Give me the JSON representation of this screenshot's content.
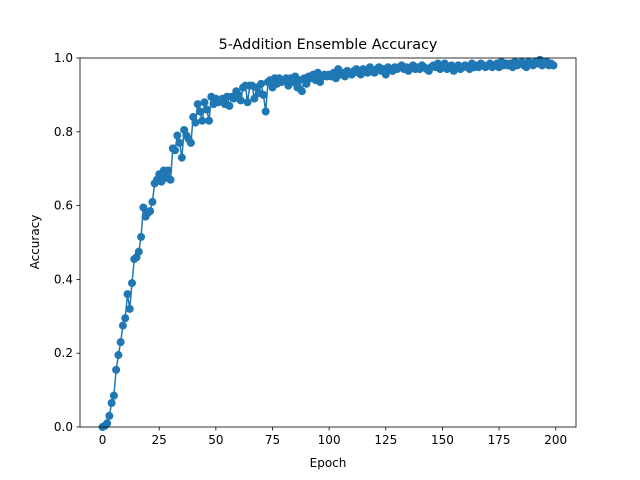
{
  "chart_data": {
    "type": "line",
    "title": "5-Addition Ensemble Accuracy",
    "xlabel": "Epoch",
    "ylabel": "Accuracy",
    "x": [
      0,
      1,
      2,
      3,
      4,
      5,
      6,
      7,
      8,
      9,
      10,
      11,
      12,
      13,
      14,
      15,
      16,
      17,
      18,
      19,
      20,
      21,
      22,
      23,
      24,
      25,
      26,
      27,
      28,
      29,
      30,
      31,
      32,
      33,
      34,
      35,
      36,
      37,
      38,
      39,
      40,
      41,
      42,
      43,
      44,
      45,
      46,
      47,
      48,
      49,
      50,
      51,
      52,
      53,
      54,
      55,
      56,
      57,
      58,
      59,
      60,
      61,
      62,
      63,
      64,
      65,
      66,
      67,
      68,
      69,
      70,
      71,
      72,
      73,
      74,
      75,
      76,
      77,
      78,
      79,
      80,
      81,
      82,
      83,
      84,
      85,
      86,
      87,
      88,
      89,
      90,
      91,
      92,
      93,
      94,
      95,
      96,
      97,
      98,
      99,
      100,
      101,
      102,
      103,
      104,
      105,
      106,
      107,
      108,
      109,
      110,
      111,
      112,
      113,
      114,
      115,
      116,
      117,
      118,
      119,
      120,
      121,
      122,
      123,
      124,
      125,
      126,
      127,
      128,
      129,
      130,
      131,
      132,
      133,
      134,
      135,
      136,
      137,
      138,
      139,
      140,
      141,
      142,
      143,
      144,
      145,
      146,
      147,
      148,
      149,
      150,
      151,
      152,
      153,
      154,
      155,
      156,
      157,
      158,
      159,
      160,
      161,
      162,
      163,
      164,
      165,
      166,
      167,
      168,
      169,
      170,
      171,
      172,
      173,
      174,
      175,
      176,
      177,
      178,
      179,
      180,
      181,
      182,
      183,
      184,
      185,
      186,
      187,
      188,
      189,
      190,
      191,
      192,
      193,
      194,
      195,
      196,
      197,
      198,
      199
    ],
    "series": [
      {
        "name": "Accuracy",
        "color": "#1f77b4",
        "values": [
          0.0,
          0.003,
          0.01,
          0.03,
          0.065,
          0.085,
          0.155,
          0.195,
          0.23,
          0.275,
          0.295,
          0.36,
          0.32,
          0.39,
          0.455,
          0.46,
          0.475,
          0.515,
          0.595,
          0.57,
          0.58,
          0.585,
          0.61,
          0.66,
          0.67,
          0.685,
          0.665,
          0.695,
          0.675,
          0.695,
          0.67,
          0.755,
          0.75,
          0.79,
          0.77,
          0.73,
          0.805,
          0.79,
          0.78,
          0.77,
          0.84,
          0.825,
          0.875,
          0.855,
          0.83,
          0.88,
          0.86,
          0.83,
          0.895,
          0.875,
          0.89,
          0.88,
          0.885,
          0.89,
          0.875,
          0.895,
          0.87,
          0.895,
          0.89,
          0.91,
          0.9,
          0.885,
          0.92,
          0.925,
          0.88,
          0.925,
          0.925,
          0.89,
          0.92,
          0.905,
          0.93,
          0.9,
          0.855,
          0.935,
          0.94,
          0.92,
          0.945,
          0.93,
          0.945,
          0.935,
          0.94,
          0.945,
          0.925,
          0.945,
          0.935,
          0.95,
          0.92,
          0.94,
          0.91,
          0.945,
          0.93,
          0.95,
          0.945,
          0.955,
          0.94,
          0.96,
          0.935,
          0.95,
          0.955,
          0.95,
          0.955,
          0.95,
          0.96,
          0.945,
          0.97,
          0.955,
          0.96,
          0.95,
          0.965,
          0.96,
          0.955,
          0.965,
          0.97,
          0.96,
          0.955,
          0.97,
          0.965,
          0.96,
          0.975,
          0.965,
          0.96,
          0.97,
          0.975,
          0.965,
          0.97,
          0.955,
          0.975,
          0.97,
          0.965,
          0.975,
          0.97,
          0.975,
          0.98,
          0.97,
          0.975,
          0.965,
          0.975,
          0.98,
          0.97,
          0.975,
          0.97,
          0.98,
          0.975,
          0.97,
          0.965,
          0.975,
          0.98,
          0.975,
          0.985,
          0.97,
          0.975,
          0.985,
          0.97,
          0.975,
          0.98,
          0.965,
          0.975,
          0.98,
          0.97,
          0.975,
          0.98,
          0.975,
          0.97,
          0.985,
          0.975,
          0.98,
          0.975,
          0.985,
          0.98,
          0.975,
          0.98,
          0.985,
          0.975,
          0.98,
          0.985,
          0.975,
          0.99,
          0.98,
          0.985,
          0.98,
          0.985,
          0.975,
          0.99,
          0.98,
          0.985,
          0.99,
          0.98,
          0.975,
          0.99,
          0.985,
          0.98,
          0.99,
          0.985,
          0.995,
          0.98,
          0.985,
          0.99,
          0.98,
          0.985,
          0.98
        ]
      }
    ],
    "xlim": [
      -9.95,
      208.95
    ],
    "xticks": [
      0,
      25,
      50,
      75,
      100,
      125,
      150,
      175,
      200
    ],
    "ylim": [
      0,
      1
    ],
    "yticks": [
      {
        "value": 0,
        "label": "0.0"
      },
      {
        "value": 0.2,
        "label": "0.2"
      },
      {
        "value": 0.4,
        "label": "0.4"
      },
      {
        "value": 0.6,
        "label": "0.6"
      },
      {
        "value": 0.8,
        "label": "0.8"
      },
      {
        "value": 1,
        "label": "1.0"
      }
    ],
    "grid": false
  }
}
